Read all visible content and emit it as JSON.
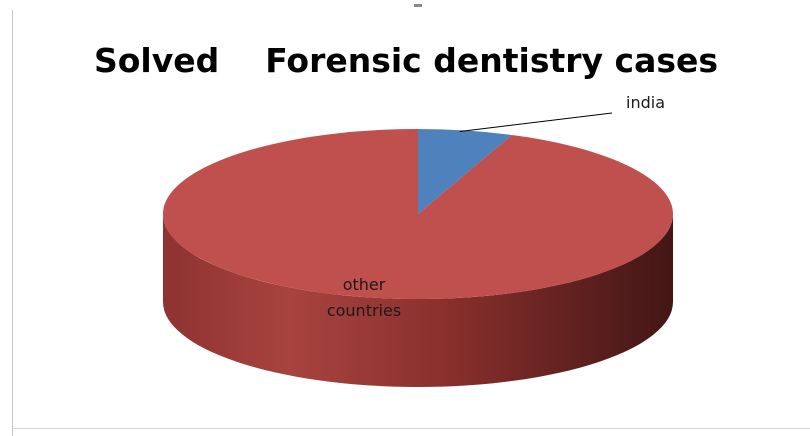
{
  "chart_data": {
    "type": "pie",
    "style": "3d",
    "title": "Solved    Forensic dentistry cases",
    "categories": [
      "india",
      "other countries"
    ],
    "values": [
      6,
      94
    ],
    "colors": [
      "#4f81bd",
      "#c0504d"
    ],
    "legend": "none",
    "labels_placement": [
      "leader-line outside",
      "inside"
    ]
  }
}
